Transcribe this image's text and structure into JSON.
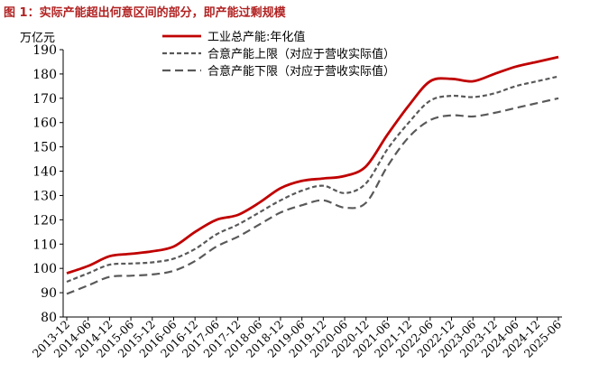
{
  "chart_data": {
    "type": "line",
    "title": "图 1：实际产能超出何意区间的部分，即产能过剩规模",
    "ylabel": "万亿元",
    "ylim": [
      80,
      190
    ],
    "yticks": [
      80,
      90,
      100,
      110,
      120,
      130,
      140,
      150,
      160,
      170,
      180,
      190
    ],
    "x": [
      "2013-12",
      "2014-06",
      "2014-12",
      "2015-06",
      "2015-12",
      "2016-06",
      "2016-12",
      "2017-06",
      "2017-12",
      "2018-06",
      "2018-12",
      "2019-06",
      "2019-12",
      "2020-06",
      "2020-12",
      "2021-06",
      "2021-12",
      "2022-06",
      "2022-12",
      "2023-06",
      "2023-12",
      "2024-06",
      "2024-12",
      "2025-06"
    ],
    "legend_position": "top-right",
    "grid": false,
    "series": [
      {
        "name": "工业总产能:年化值",
        "style": "solid",
        "color": "#c00000",
        "values": [
          98,
          101,
          105,
          106,
          107,
          109,
          115,
          120,
          122,
          127,
          133,
          136,
          137,
          138,
          142,
          155,
          167,
          177,
          178,
          177,
          180,
          183,
          185,
          187
        ]
      },
      {
        "name": "合意产能上限（对应于营收实际值）",
        "style": "dashed",
        "color": "#595959",
        "values": [
          94.5,
          98,
          101.5,
          102,
          102.5,
          104,
          108,
          114,
          118,
          123,
          128,
          132,
          134,
          131,
          135,
          149,
          160,
          169,
          171,
          170.5,
          172,
          175,
          177,
          179
        ]
      },
      {
        "name": "合意产能下限（对应于营收实际值）",
        "style": "dashed",
        "color": "#595959",
        "values": [
          89.5,
          93,
          96.5,
          97,
          97.5,
          99,
          103,
          109,
          113,
          118,
          123,
          126,
          128,
          125,
          127,
          142,
          154,
          161,
          163,
          162.5,
          164,
          166,
          168,
          170
        ]
      }
    ]
  }
}
